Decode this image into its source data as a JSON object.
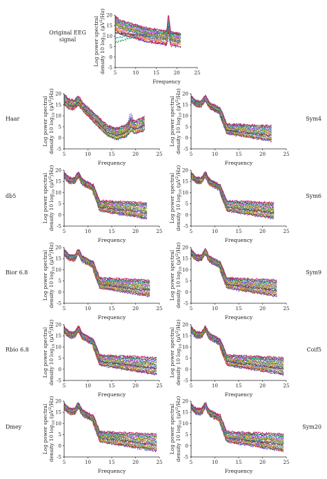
{
  "figure": {
    "xlabel": "Frequency",
    "ylabel_line1": "Log power spectral",
    "ylabel_line2": "density 10 log",
    "ylabel_sub": "10",
    "ylabel_tail": " (μV",
    "ylabel_sup": "2",
    "ylabel_end": "/Hz)"
  },
  "chart_data": [
    {
      "type": "line",
      "panel_label": [
        "Original EEG",
        "signal"
      ],
      "profile": "original",
      "xlim": [
        5,
        25
      ],
      "ylim": [
        -5,
        20
      ],
      "xticks": [
        5,
        10,
        15,
        20,
        25
      ],
      "yticks": [
        -5,
        0,
        5,
        10,
        15,
        20
      ],
      "x_range": [
        5,
        21
      ],
      "n_channels": 20
    },
    {
      "type": "line",
      "panel_label": [
        "Haar"
      ],
      "profile": "haar",
      "xlim": [
        5,
        25
      ],
      "ylim": [
        -5,
        20
      ],
      "xticks": [
        5,
        10,
        15,
        20,
        25
      ],
      "yticks": [
        -5,
        0,
        5,
        10,
        15,
        20
      ],
      "x_range": [
        5,
        22
      ],
      "n_channels": 20
    },
    {
      "type": "line",
      "panel_label": [
        "Sym4"
      ],
      "profile": "smooth",
      "xlim": [
        5,
        25
      ],
      "ylim": [
        -5,
        20
      ],
      "xticks": [
        5,
        10,
        15,
        20,
        25
      ],
      "yticks": [
        -5,
        0,
        5,
        10,
        15,
        20
      ],
      "x_range": [
        5,
        22
      ],
      "n_channels": 20
    },
    {
      "type": "line",
      "panel_label": [
        "db5"
      ],
      "profile": "smooth",
      "xlim": [
        5,
        25
      ],
      "ylim": [
        -5,
        20
      ],
      "xticks": [
        5,
        10,
        15,
        20,
        25
      ],
      "yticks": [
        -5,
        0,
        5,
        10,
        15,
        20
      ],
      "x_range": [
        5,
        22.5
      ],
      "n_channels": 20
    },
    {
      "type": "line",
      "panel_label": [
        "Sym6"
      ],
      "profile": "smooth",
      "xlim": [
        5,
        25
      ],
      "ylim": [
        -5,
        20
      ],
      "xticks": [
        5,
        10,
        15,
        20,
        25
      ],
      "yticks": [
        -5,
        0,
        5,
        10,
        15,
        20
      ],
      "x_range": [
        5,
        22.5
      ],
      "n_channels": 20
    },
    {
      "type": "line",
      "panel_label": [
        "Bior 6.8"
      ],
      "profile": "smooth",
      "xlim": [
        5,
        25
      ],
      "ylim": [
        -5,
        20
      ],
      "xticks": [
        5,
        10,
        15,
        20,
        25
      ],
      "yticks": [
        -5,
        0,
        5,
        10,
        15,
        20
      ],
      "x_range": [
        5,
        23
      ],
      "n_channels": 20
    },
    {
      "type": "line",
      "panel_label": [
        "Sym9"
      ],
      "profile": "smooth",
      "xlim": [
        5,
        25
      ],
      "ylim": [
        -5,
        20
      ],
      "xticks": [
        5,
        10,
        15,
        20,
        25
      ],
      "yticks": [
        -5,
        0,
        5,
        10,
        15,
        20
      ],
      "x_range": [
        5,
        23
      ],
      "n_channels": 20
    },
    {
      "type": "line",
      "panel_label": [
        "Rbio 6.8"
      ],
      "profile": "smooth",
      "xlim": [
        5,
        25
      ],
      "ylim": [
        -5,
        20
      ],
      "xticks": [
        5,
        10,
        15,
        20,
        25
      ],
      "yticks": [
        -5,
        0,
        5,
        10,
        15,
        20
      ],
      "x_range": [
        5,
        24.5
      ],
      "n_channels": 20
    },
    {
      "type": "line",
      "panel_label": [
        "Coif5"
      ],
      "profile": "smooth",
      "xlim": [
        5,
        25
      ],
      "ylim": [
        -5,
        20
      ],
      "xticks": [
        5,
        10,
        15,
        20,
        25
      ],
      "yticks": [
        -5,
        0,
        5,
        10,
        15,
        20
      ],
      "x_range": [
        5,
        24.5
      ],
      "n_channels": 20
    },
    {
      "type": "line",
      "panel_label": [
        "Dmey"
      ],
      "profile": "smooth",
      "xlim": [
        5,
        25
      ],
      "ylim": [
        -5,
        20
      ],
      "xticks": [
        5,
        10,
        15,
        20,
        25
      ],
      "yticks": [
        -5,
        0,
        5,
        10,
        15,
        20
      ],
      "x_range": [
        5,
        24.5
      ],
      "n_channels": 20
    },
    {
      "type": "line",
      "panel_label": [
        "Sym20"
      ],
      "profile": "smooth",
      "xlim": [
        5,
        25
      ],
      "ylim": [
        -5,
        20
      ],
      "xticks": [
        5,
        10,
        15,
        20,
        25
      ],
      "yticks": [
        -5,
        0,
        5,
        10,
        15,
        20
      ],
      "x_range": [
        5,
        24.5
      ],
      "n_channels": 20
    }
  ],
  "colors": [
    "#1f1fd0",
    "#e02020",
    "#20a020",
    "#9a20c0",
    "#e0a000",
    "#20b0c0",
    "#d040a0",
    "#404040",
    "#a05020",
    "#2060ff",
    "#80c020",
    "#ff6060",
    "#006080",
    "#c0c000",
    "#6040ff",
    "#ff40ff",
    "#00c080",
    "#804000",
    "#4080c0",
    "#c02060"
  ]
}
